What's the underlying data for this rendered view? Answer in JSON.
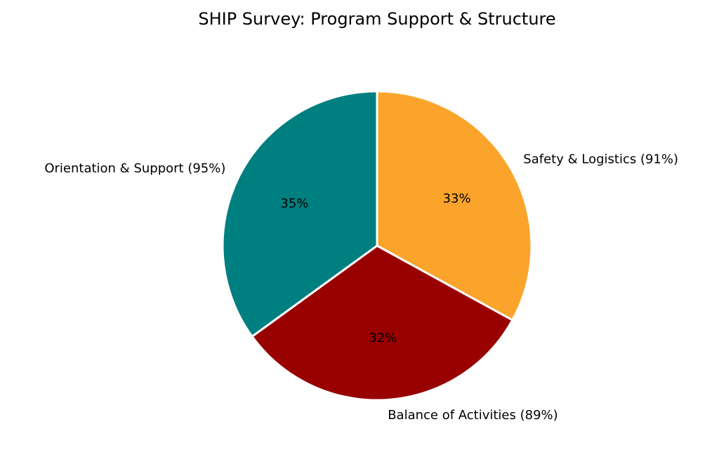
{
  "chart_data": {
    "type": "pie",
    "title": "SHIP Survey: Program Support & Structure",
    "categories": [
      "Safety & Logistics (91%)",
      "Balance of Activities (89%)",
      "Orientation & Support (95%)"
    ],
    "values": [
      33,
      32,
      35
    ],
    "percent_labels": [
      "33%",
      "32%",
      "35%"
    ],
    "colors": [
      "#FBA42B",
      "#990000",
      "#007F80"
    ],
    "start_angle_deg": 90,
    "direction": "clockwise",
    "edge_color": "#ffffff",
    "legend": "none"
  }
}
